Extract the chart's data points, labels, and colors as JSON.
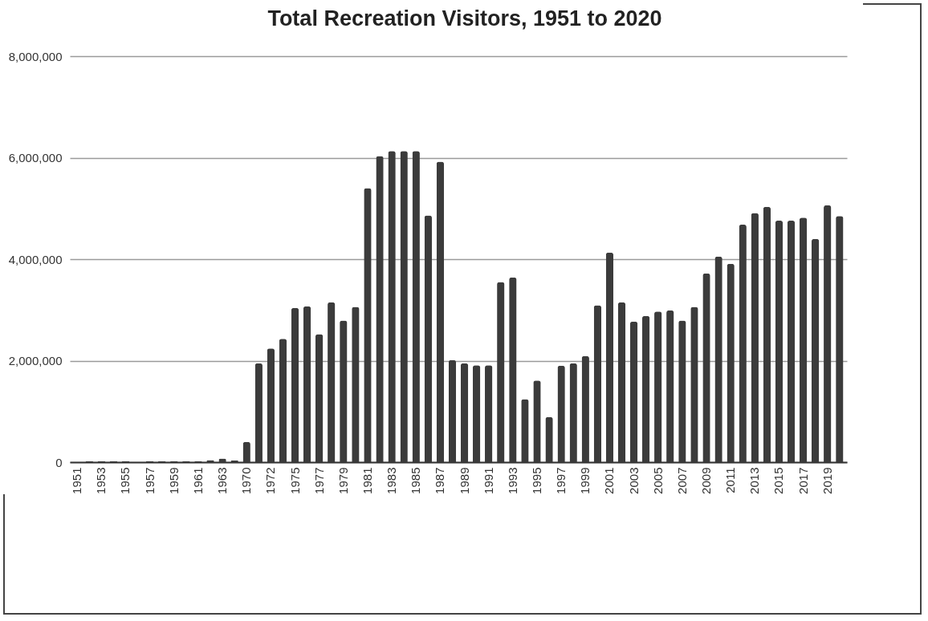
{
  "chart_data": {
    "type": "bar",
    "title": "Total Recreation Visitors, 1951 to 2020",
    "categories": [
      "1951",
      null,
      "1953",
      null,
      "1955",
      null,
      "1957",
      null,
      "1959",
      null,
      "1961",
      null,
      "1963",
      null,
      "1970",
      null,
      "1972",
      null,
      "1975",
      null,
      "1977",
      null,
      "1979",
      null,
      "1981",
      null,
      "1983",
      null,
      "1985",
      null,
      "1987",
      null,
      "1989",
      null,
      "1991",
      null,
      "1993",
      null,
      "1995",
      null,
      "1997",
      null,
      "1999",
      null,
      "2001",
      null,
      "2003",
      null,
      "2005",
      null,
      "2007",
      null,
      "2009",
      null,
      "2011",
      null,
      "2013",
      null,
      "2015",
      null,
      "2017",
      null,
      "2019",
      null
    ],
    "values": [
      0,
      20000,
      20000,
      20000,
      20000,
      0,
      20000,
      20000,
      20000,
      20000,
      20000,
      40000,
      70000,
      30000,
      400000,
      1950000,
      2240000,
      2430000,
      3040000,
      3070000,
      2520000,
      3150000,
      2790000,
      3060000,
      5400000,
      6030000,
      6130000,
      6130000,
      6130000,
      4860000,
      5920000,
      2010000,
      1950000,
      1910000,
      1910000,
      3550000,
      3640000,
      1240000,
      1610000,
      890000,
      1900000,
      1950000,
      2090000,
      3090000,
      4130000,
      3150000,
      2770000,
      2880000,
      2970000,
      2990000,
      2790000,
      3060000,
      3720000,
      4050000,
      3910000,
      4680000,
      4910000,
      5030000,
      4760000,
      4760000,
      4820000,
      4400000,
      5060000,
      4850000
    ],
    "color": "#3b3b3b",
    "ylim": [
      0,
      8000000
    ],
    "yticks": [
      {
        "value": 0,
        "label": "0"
      },
      {
        "value": 2000000,
        "label": "2,000,000"
      },
      {
        "value": 4000000,
        "label": "4,000,000"
      },
      {
        "value": 6000000,
        "label": "6,000,000"
      },
      {
        "value": 8000000,
        "label": "8,000,000"
      }
    ],
    "grid": "y"
  }
}
